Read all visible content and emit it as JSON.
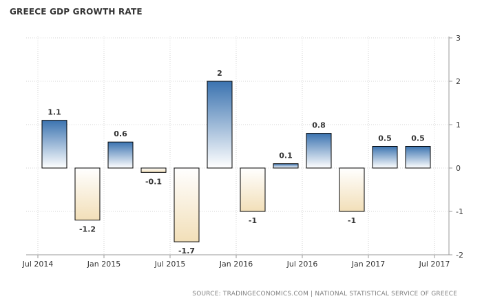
{
  "chart_data": {
    "type": "bar",
    "title": "GREECE GDP GROWTH RATE",
    "source": "SOURCE: TRADINGECONOMICS.COM | NATIONAL STATISTICAL SERVICE OF GREECE",
    "categories": [
      "Q3 2014",
      "Q4 2014",
      "Q1 2015",
      "Q2 2015",
      "Q3 2015",
      "Q4 2015",
      "Q1 2016",
      "Q2 2016",
      "Q3 2016",
      "Q4 2016",
      "Q1 2017",
      "Q2 2017"
    ],
    "values": [
      1.1,
      -1.2,
      0.6,
      -0.1,
      -1.7,
      2,
      -1,
      0.1,
      0.8,
      -1,
      0.5,
      0.5
    ],
    "data_labels": [
      "1.1",
      "-1.2",
      "0.6",
      "-0.1",
      "-1.7",
      "2",
      "-1",
      "0.1",
      "0.8",
      "-1",
      "0.5",
      "0.5"
    ],
    "x_tick_labels": [
      "Jul 2014",
      "Jan 2015",
      "Jul 2015",
      "Jan 2016",
      "Jul 2016",
      "Jan 2017",
      "Jul 2017"
    ],
    "y_ticks": [
      3,
      2,
      1,
      0,
      -1,
      -2
    ],
    "ylim": [
      -2,
      3
    ],
    "xlabel": "",
    "ylabel": "",
    "grid": true,
    "y_axis_side": "right",
    "colors": {
      "positive_top": "#3b73b0",
      "positive_bottom": "#ffffff",
      "negative_top": "#ffffff",
      "negative_bottom": "#f2dfb8",
      "bar_stroke": "#000000",
      "grid": "#d4d4d4",
      "axis": "#999999"
    }
  }
}
